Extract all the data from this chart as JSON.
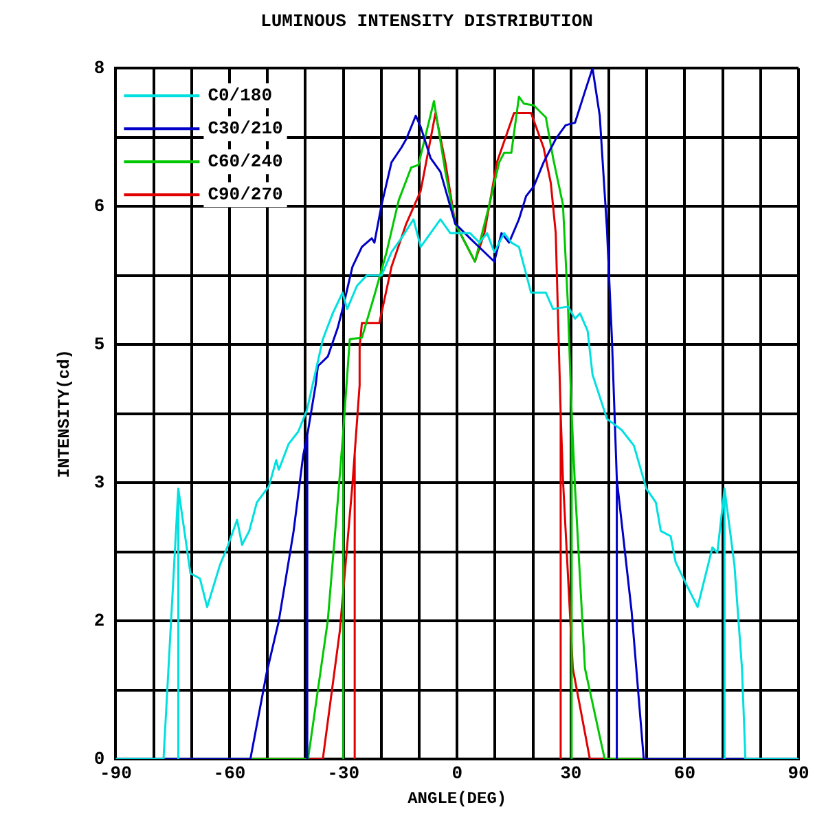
{
  "chart_data": {
    "type": "line",
    "title": "LUMINOUS INTENSITY DISTRIBUTION",
    "xlabel": "ANGLE(DEG)",
    "ylabel": "INTENSITY(cd)",
    "xlim": [
      -90,
      90
    ],
    "xticks": [
      -90,
      {
        "value": -80,
        "label": null
      },
      {
        "value": -70,
        "label": null
      },
      -60,
      {
        "value": -50,
        "label": null
      },
      {
        "value": -40,
        "label": null
      },
      -30,
      {
        "value": -20,
        "label": null
      },
      {
        "value": -10,
        "label": null
      },
      0,
      {
        "value": 10,
        "label": null
      },
      {
        "value": 20,
        "label": null
      },
      30,
      {
        "value": 40,
        "label": null
      },
      {
        "value": 50,
        "label": null
      },
      60,
      {
        "value": 70,
        "label": null
      },
      {
        "value": 80,
        "label": null
      },
      90
    ],
    "ylim": [
      0,
      8
    ],
    "yticks": [
      0,
      {
        "value": 0.8,
        "label": null
      },
      {
        "value": 1.6,
        "label": "2"
      },
      {
        "value": 2.4,
        "label": null
      },
      {
        "value": 3.2,
        "label": "3"
      },
      {
        "value": 4,
        "label": null
      },
      {
        "value": 4.8,
        "label": "5"
      },
      {
        "value": 5.6,
        "label": null
      },
      {
        "value": 6.4,
        "label": "6"
      },
      {
        "value": 7.2,
        "label": null
      },
      8
    ],
    "grid": true,
    "legend": "top left",
    "marker": "none",
    "line_style": "solid",
    "series": [
      {
        "name": "C0/180",
        "color": "#00e0e0",
        "x": [
          -90,
          -77.4,
          -73.5,
          -73.5,
          -73.5,
          -70.3,
          -67.8,
          -65.9,
          -62.5,
          -60.6,
          -58,
          -56.7,
          -54.8,
          -52.8,
          -49.6,
          -47.7,
          -47,
          -44.4,
          -41.9,
          -39.6,
          -35.4,
          -32.8,
          -30.2,
          -29,
          -26.4,
          -23.8,
          -19.9,
          -17.3,
          -14.7,
          -11.5,
          -9.6,
          -7,
          -4.4,
          -1.8,
          2.1,
          3.4,
          5.9,
          7.9,
          9.8,
          12.4,
          14.3,
          16.3,
          19.5,
          23.4,
          25.3,
          29.2,
          31.1,
          32.4,
          34.4,
          35.7,
          39.5,
          43.4,
          46.6,
          49.9,
          52.4,
          53.7,
          56.3,
          57.6,
          60.9,
          63.4,
          67.3,
          68.6,
          70.5,
          70.5,
          70.5,
          73.1,
          75.1,
          76,
          90
        ],
        "values": [
          0,
          0,
          3.13,
          0,
          3.13,
          2.15,
          2.09,
          1.76,
          2.25,
          2.45,
          2.77,
          2.48,
          2.64,
          2.97,
          3.16,
          3.46,
          3.35,
          3.65,
          3.79,
          4.04,
          4.86,
          5.16,
          5.4,
          5.21,
          5.48,
          5.6,
          5.6,
          5.87,
          6.03,
          6.25,
          5.93,
          6.09,
          6.25,
          6.09,
          6.09,
          6.09,
          5.98,
          6.09,
          5.87,
          6.09,
          5.98,
          5.93,
          5.4,
          5.4,
          5.21,
          5.24,
          5.1,
          5.16,
          4.96,
          4.45,
          3.94,
          3.81,
          3.63,
          3.13,
          2.97,
          2.64,
          2.58,
          2.28,
          1.98,
          1.76,
          2.45,
          2.39,
          3.13,
          0,
          3.13,
          2.25,
          1.05,
          0,
          0
        ]
      },
      {
        "name": "C30/210",
        "color": "#0000c8",
        "x": [
          -90,
          -54.5,
          -50.2,
          -47,
          -43.1,
          -40.6,
          -39.5,
          -39.5,
          -39.5,
          -37.3,
          -36.7,
          -34.1,
          -31.5,
          -30.2,
          -27.6,
          -25.1,
          -22.5,
          -21.8,
          -19.9,
          -17.3,
          -14.7,
          -13.4,
          -10.9,
          -9.6,
          -7,
          -4.4,
          -0.5,
          3.4,
          7.2,
          9.8,
          11.7,
          13.7,
          16.3,
          18.2,
          20.2,
          22.8,
          26,
          28.6,
          31.1,
          33.7,
          35.7,
          37.6,
          39.5,
          40.8,
          41.5,
          42.1,
          42.1,
          42.1,
          46,
          49.2,
          90
        ],
        "values": [
          0,
          0,
          1,
          1.6,
          2.64,
          3.51,
          3.75,
          0,
          3.75,
          4.33,
          4.55,
          4.66,
          4.99,
          5.21,
          5.7,
          5.93,
          6.03,
          5.98,
          6.42,
          6.91,
          7.08,
          7.18,
          7.45,
          7.32,
          6.96,
          6.8,
          6.2,
          6.03,
          5.87,
          5.76,
          6.09,
          5.98,
          6.25,
          6.52,
          6.63,
          6.91,
          7.18,
          7.34,
          7.37,
          7.73,
          8,
          7.45,
          6.14,
          4.88,
          4,
          3.24,
          0,
          3.24,
          1.71,
          0,
          0
        ]
      },
      {
        "name": "C60/240",
        "color": "#00c800",
        "x": [
          -90,
          -39.3,
          -34.1,
          -31.5,
          -30,
          -30,
          -30,
          -29.6,
          -28.3,
          -25.1,
          -21.8,
          -18.6,
          -15.4,
          -12.1,
          -10.2,
          -6.1,
          -3.1,
          -0.5,
          4.7,
          8.5,
          11.1,
          12.4,
          14.3,
          16.3,
          17.6,
          20.2,
          23.4,
          25.3,
          27.9,
          29.2,
          30.2,
          30.2,
          30.2,
          31.1,
          33.7,
          38.9,
          90
        ],
        "values": [
          0,
          0,
          1.6,
          2.97,
          3.8,
          0,
          3.8,
          4.06,
          4.86,
          4.88,
          5.37,
          5.87,
          6.47,
          6.85,
          6.88,
          7.62,
          6.8,
          6.2,
          5.76,
          6.42,
          6.91,
          7.02,
          7.02,
          7.67,
          7.59,
          7.57,
          7.43,
          6.96,
          6.42,
          5.27,
          4,
          0,
          4,
          3.13,
          1.05,
          0,
          0
        ]
      },
      {
        "name": "C90/270",
        "color": "#e00000",
        "x": [
          -90,
          -35.4,
          -30.9,
          -27.6,
          -27,
          -27,
          -27,
          -25.7,
          -25.7,
          -25.1,
          -20.5,
          -17.3,
          -13.4,
          -9.6,
          -5.7,
          -3.1,
          -0.5,
          4.7,
          7.2,
          10.5,
          13.1,
          15,
          19.5,
          22.8,
          24.7,
          26,
          27.3,
          27.3,
          27.3,
          27.9,
          30.5,
          35,
          90
        ],
        "values": [
          0,
          0,
          1.49,
          3.18,
          3.54,
          0,
          3.54,
          4.33,
          4.77,
          5.05,
          5.05,
          5.7,
          6.2,
          6.58,
          7.48,
          6.91,
          6.2,
          5.76,
          6.09,
          6.91,
          7.24,
          7.48,
          7.48,
          7.08,
          6.67,
          6.09,
          4,
          0,
          4,
          3.24,
          1.05,
          0,
          0
        ]
      }
    ]
  }
}
